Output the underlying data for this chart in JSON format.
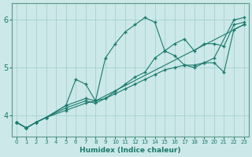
{
  "xlabel": "Humidex (Indice chaleur)",
  "bg_color": "#cce8e8",
  "line_color": "#1a7a6e",
  "xlim": [
    -0.5,
    23.5
  ],
  "ylim": [
    3.55,
    6.35
  ],
  "yticks": [
    4,
    5,
    6
  ],
  "xticks": [
    0,
    1,
    2,
    3,
    4,
    5,
    6,
    7,
    8,
    9,
    10,
    11,
    12,
    13,
    14,
    15,
    16,
    17,
    18,
    19,
    20,
    21,
    22,
    23
  ],
  "lines": [
    {
      "x": [
        0,
        1,
        2,
        3,
        5,
        6,
        7,
        8,
        9,
        10,
        11,
        12,
        13,
        14,
        15,
        16,
        17,
        18,
        19,
        20,
        22,
        23
      ],
      "y": [
        3.85,
        3.73,
        3.85,
        3.95,
        4.2,
        4.75,
        4.65,
        4.3,
        5.2,
        5.5,
        5.75,
        5.9,
        6.05,
        5.95,
        5.35,
        5.25,
        5.05,
        5.0,
        5.1,
        5.2,
        6.0,
        6.05
      ]
    },
    {
      "x": [
        0,
        1,
        2,
        3,
        5,
        7,
        8,
        9,
        10,
        11,
        12,
        13,
        14,
        15,
        16,
        17,
        18,
        19,
        20,
        21,
        22,
        23
      ],
      "y": [
        3.85,
        3.73,
        3.85,
        3.95,
        4.2,
        4.35,
        4.3,
        4.35,
        4.5,
        4.65,
        4.8,
        4.9,
        5.2,
        5.35,
        5.5,
        5.6,
        5.35,
        5.5,
        5.5,
        5.45,
        5.9,
        5.95
      ]
    },
    {
      "x": [
        0,
        1,
        2,
        3,
        5,
        7,
        8,
        9,
        10,
        11,
        12,
        13,
        14,
        15,
        16,
        17,
        18,
        19,
        20,
        21,
        22,
        23
      ],
      "y": [
        3.85,
        3.73,
        3.85,
        3.95,
        4.15,
        4.3,
        4.25,
        4.35,
        4.45,
        4.55,
        4.65,
        4.75,
        4.85,
        4.95,
        5.0,
        5.05,
        5.05,
        5.1,
        5.1,
        4.9,
        5.8,
        5.9
      ]
    },
    {
      "x": [
        0,
        1,
        2,
        3,
        5,
        7,
        8,
        23
      ],
      "y": [
        3.85,
        3.73,
        3.85,
        3.95,
        4.1,
        4.25,
        4.3,
        5.9
      ]
    }
  ]
}
